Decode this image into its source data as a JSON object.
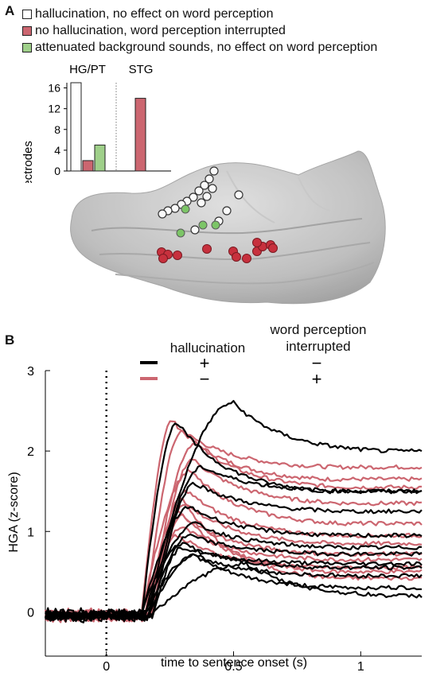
{
  "panel_a": {
    "letter": "A",
    "legend": [
      {
        "label": "hallucination, no effect on word perception",
        "color": "#ffffff"
      },
      {
        "label": "no hallucination, word perception interrupted",
        "color": "#cc6670"
      },
      {
        "label": "attenuated background sounds, no effect on word perception",
        "color": "#9fd08a"
      }
    ]
  },
  "panel_b": {
    "letter": "B",
    "key": {
      "col1_header": "hallucination",
      "col2_header_line1": "word perception",
      "col2_header_line2": "interrupted",
      "rows": [
        {
          "color": "#000000",
          "col1": "+",
          "col2": "−"
        },
        {
          "color": "#cc6670",
          "col1": "−",
          "col2": "+"
        }
      ]
    }
  },
  "chart_data": [
    {
      "type": "bar",
      "ylabel": "# electrodes",
      "groups": [
        "HG/PT",
        "STG"
      ],
      "yticks": [
        0,
        4,
        8,
        12,
        16
      ],
      "ylim": [
        0,
        17
      ],
      "series": [
        {
          "name": "hallucination, no effect on word perception",
          "color": "#ffffff",
          "values": [
            17,
            0
          ]
        },
        {
          "name": "no hallucination, word perception interrupted",
          "color": "#cc6670",
          "values": [
            2,
            14
          ]
        },
        {
          "name": "attenuated background sounds, no effect on word perception",
          "color": "#9fd08a",
          "values": [
            5,
            0
          ]
        }
      ]
    },
    {
      "type": "line",
      "xlabel": "time to sentence onset (s)",
      "ylabel": "HGA (z-score)",
      "xlim": [
        -0.24,
        1.24
      ],
      "ylim": [
        -0.55,
        3.0
      ],
      "xticks": [
        0,
        0.5,
        1
      ],
      "xticklabels": [
        "0",
        "0.5",
        "1"
      ],
      "yticks": [
        0,
        1,
        2,
        3
      ],
      "yticklabels": [
        "0",
        "1",
        "2",
        "3"
      ],
      "vline_at": 0,
      "groups": [
        {
          "color": "#000000",
          "peaks": [
            [
              0.28,
              2.35,
              1.5
            ],
            [
              0.5,
              2.6,
              2.0
            ],
            [
              0.38,
              1.8,
              1.5
            ],
            [
              0.35,
              1.6,
              1.25
            ],
            [
              0.33,
              1.3,
              0.95
            ],
            [
              0.35,
              1.1,
              0.8
            ],
            [
              0.33,
              0.95,
              0.72
            ],
            [
              0.3,
              0.8,
              0.6
            ],
            [
              0.3,
              0.85,
              0.55
            ],
            [
              0.35,
              0.7,
              0.45
            ],
            [
              0.35,
              0.7,
              0.3
            ],
            [
              0.55,
              0.6,
              0.2
            ]
          ]
        },
        {
          "color": "#cc6670",
          "peaks": [
            [
              0.26,
              2.38,
              1.65
            ],
            [
              0.3,
              2.25,
              1.8
            ],
            [
              0.35,
              2.1,
              1.55
            ],
            [
              0.34,
              1.9,
              1.35
            ],
            [
              0.33,
              1.75,
              1.1
            ],
            [
              0.32,
              1.5,
              0.95
            ],
            [
              0.31,
              1.35,
              0.85
            ],
            [
              0.3,
              1.2,
              0.72
            ],
            [
              0.3,
              1.05,
              0.65
            ],
            [
              0.28,
              0.95,
              0.55
            ],
            [
              0.29,
              1.25,
              0.5
            ],
            [
              0.3,
              1.4,
              0.42
            ]
          ]
        }
      ]
    }
  ]
}
